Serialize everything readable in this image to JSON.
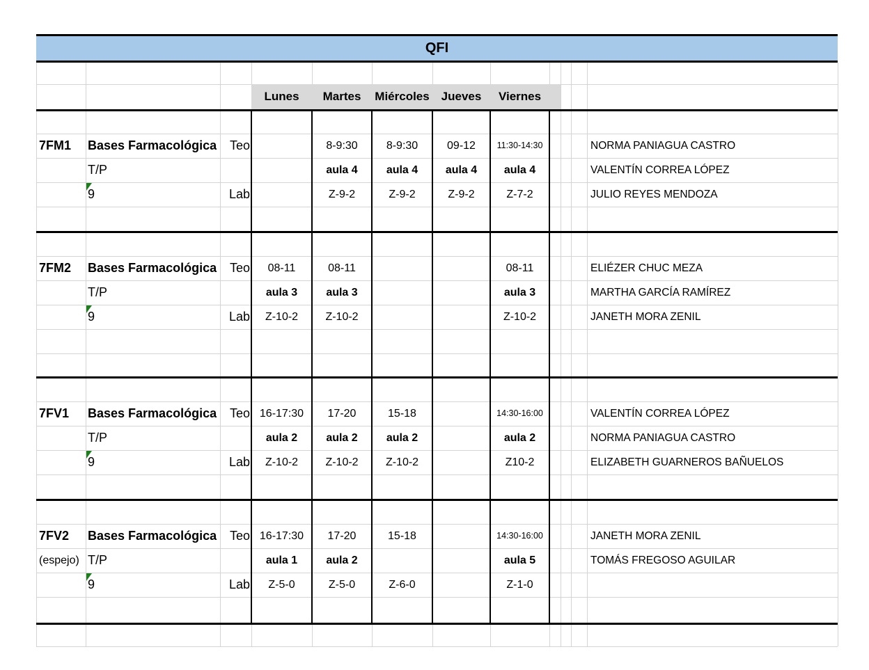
{
  "title": "QFI",
  "days": [
    "Lunes",
    "Martes",
    "Miércoles",
    "Jueves",
    "Viernes"
  ],
  "labels": {
    "theory": "Teo",
    "lab": "Lab"
  },
  "colors": {
    "banner_blue": "#a6c9ea",
    "day_header_gray": "#d9d9d9",
    "grid_line_gray": "#d4d4d4",
    "border_black": "#000000",
    "indicator_green": "#1e7e1e"
  },
  "sections": [
    {
      "group": "7FM1",
      "note": "",
      "subject": "Bases Farmacológica",
      "type": "T/P",
      "hours": "9",
      "rows": {
        "time": [
          "",
          "8-9:30",
          "8-9:30",
          "09-12",
          "11:30-14:30"
        ],
        "room": [
          "",
          "aula 4",
          "aula 4",
          "aula 4",
          "aula 4"
        ],
        "lab": [
          "",
          "Z-9-2",
          "Z-9-2",
          "Z-9-2",
          "Z-7-2"
        ]
      },
      "teachers": [
        "NORMA PANIAGUA CASTRO",
        "VALENTÍN CORREA LÓPEZ",
        "JULIO REYES MENDOZA"
      ]
    },
    {
      "group": "7FM2",
      "note": "",
      "subject": "Bases Farmacológica",
      "type": "T/P",
      "hours": "9",
      "rows": {
        "time": [
          "08-11",
          "08-11",
          "",
          "",
          "08-11"
        ],
        "room": [
          "aula 3",
          "aula 3",
          "",
          "",
          "aula 3"
        ],
        "lab": [
          "Z-10-2",
          "Z-10-2",
          "",
          "",
          "Z-10-2"
        ]
      },
      "teachers": [
        "ELIÉZER CHUC MEZA",
        "MARTHA GARCÍA RAMÍREZ",
        "JANETH MORA ZENIL"
      ]
    },
    {
      "group": "7FV1",
      "note": "",
      "subject": "Bases Farmacológica",
      "type": "T/P",
      "hours": "9",
      "rows": {
        "time": [
          "16-17:30",
          "17-20",
          "15-18",
          "",
          "14:30-16:00"
        ],
        "room": [
          "aula 2",
          "aula 2",
          "aula 2",
          "",
          "aula 2"
        ],
        "lab": [
          "Z-10-2",
          "Z-10-2",
          "Z-10-2",
          "",
          "Z10-2"
        ]
      },
      "teachers": [
        "VALENTÍN CORREA LÓPEZ",
        "NORMA PANIAGUA CASTRO",
        "ELIZABETH GUARNEROS BAÑUELOS"
      ]
    },
    {
      "group": "7FV2",
      "note": "(espejo)",
      "subject": "Bases Farmacológica",
      "type": "T/P",
      "hours": "9",
      "rows": {
        "time": [
          "16-17:30",
          "17-20",
          "15-18",
          "",
          "14:30-16:00"
        ],
        "room": [
          "aula 1",
          "aula 2",
          "",
          "",
          "aula 5"
        ],
        "lab": [
          "Z-5-0",
          "Z-5-0",
          "Z-6-0",
          "",
          "Z-1-0"
        ]
      },
      "teachers": [
        "JANETH MORA ZENIL",
        "TOMÁS FREGOSO AGUILAR",
        ""
      ]
    }
  ]
}
